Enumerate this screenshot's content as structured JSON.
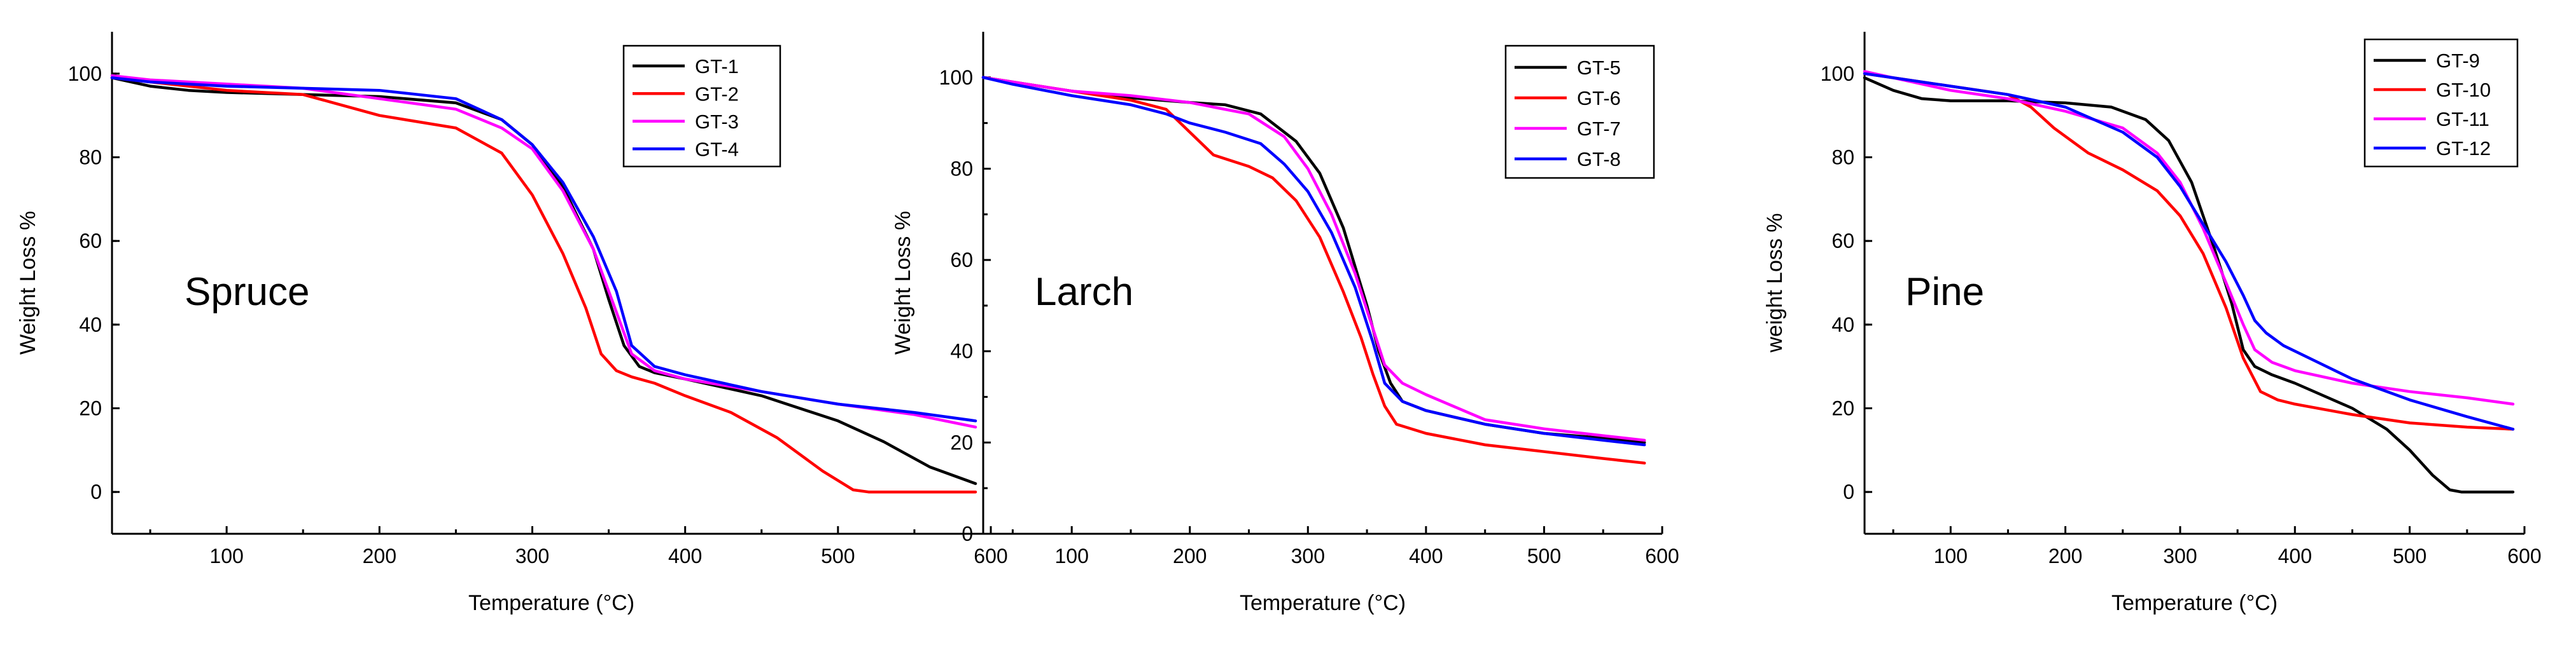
{
  "chart_data": [
    {
      "type": "line",
      "title": "",
      "annotation": "Spruce",
      "xlabel": "Temperature (°C)",
      "ylabel": "Weight Loss %",
      "xlim": [
        25,
        600
      ],
      "ylim": [
        -10,
        110
      ],
      "xticks": [
        100,
        200,
        300,
        400,
        500,
        600
      ],
      "yticks": [
        0,
        20,
        40,
        60,
        80,
        100
      ],
      "legend_position": "top-right",
      "series": [
        {
          "name": "GT-1",
          "color": "#000000",
          "x": [
            25,
            50,
            75,
            100,
            150,
            200,
            250,
            280,
            300,
            320,
            340,
            350,
            360,
            370,
            380,
            400,
            450,
            500,
            530,
            560,
            590
          ],
          "y": [
            99,
            97,
            96,
            95.5,
            95,
            94.5,
            93,
            89,
            83,
            73,
            58,
            46,
            35,
            30,
            28.5,
            27,
            23,
            17,
            12,
            6,
            2
          ]
        },
        {
          "name": "GT-2",
          "color": "#ff0000",
          "x": [
            25,
            50,
            100,
            150,
            170,
            200,
            250,
            280,
            300,
            320,
            335,
            345,
            355,
            365,
            380,
            400,
            430,
            460,
            490,
            510,
            520,
            590
          ],
          "y": [
            99,
            98,
            96,
            95,
            93,
            90,
            87,
            81,
            71,
            57,
            44,
            33,
            29,
            27.5,
            26,
            23,
            19,
            13,
            5,
            0.5,
            0,
            0
          ]
        },
        {
          "name": "GT-3",
          "color": "#ff00ff",
          "x": [
            25,
            50,
            100,
            150,
            200,
            250,
            280,
            300,
            320,
            340,
            355,
            365,
            380,
            400,
            450,
            500,
            550,
            590
          ],
          "y": [
            99.5,
            98.5,
            97.5,
            96.5,
            94,
            91.5,
            87,
            82,
            72,
            58,
            43,
            33,
            29,
            27,
            24,
            21,
            18.5,
            15.5
          ]
        },
        {
          "name": "GT-4",
          "color": "#0000ff",
          "x": [
            25,
            50,
            100,
            150,
            200,
            250,
            280,
            300,
            320,
            340,
            355,
            365,
            380,
            400,
            450,
            500,
            550,
            590
          ],
          "y": [
            99,
            98,
            97,
            96.5,
            96,
            94,
            89,
            83,
            74,
            61,
            48,
            35,
            30,
            28,
            24,
            21,
            19,
            17
          ]
        }
      ]
    },
    {
      "type": "line",
      "title": "",
      "annotation": "Larch",
      "xlabel": "Temperature (°C)",
      "ylabel": "Weight Loss %",
      "xlim": [
        25,
        600
      ],
      "ylim": [
        0,
        110
      ],
      "xticks": [
        100,
        200,
        300,
        400,
        500,
        600
      ],
      "yticks": [
        0,
        20,
        40,
        60,
        80,
        100
      ],
      "legend_position": "top-right",
      "series": [
        {
          "name": "GT-5",
          "color": "#000000",
          "x": [
            25,
            50,
            100,
            150,
            200,
            230,
            260,
            290,
            310,
            330,
            350,
            360,
            370,
            380,
            400,
            450,
            500,
            550,
            585
          ],
          "y": [
            100,
            99,
            97,
            95.5,
            94.5,
            94,
            92,
            86,
            79,
            67,
            50,
            40,
            33,
            29,
            27,
            24,
            22,
            21,
            20
          ]
        },
        {
          "name": "GT-6",
          "color": "#ff0000",
          "x": [
            25,
            50,
            100,
            150,
            180,
            200,
            220,
            250,
            270,
            290,
            310,
            330,
            345,
            355,
            365,
            375,
            400,
            450,
            500,
            550,
            585
          ],
          "y": [
            100,
            99,
            97,
            95,
            93,
            88,
            83,
            80.5,
            78,
            73,
            65,
            53,
            43,
            35,
            28,
            24,
            22,
            19.5,
            18,
            16.5,
            15.5
          ]
        },
        {
          "name": "GT-7",
          "color": "#ff00ff",
          "x": [
            25,
            50,
            100,
            150,
            200,
            250,
            280,
            300,
            320,
            340,
            355,
            365,
            380,
            400,
            450,
            500,
            550,
            585
          ],
          "y": [
            100,
            99,
            97,
            96,
            94.5,
            92,
            87,
            80,
            70,
            57,
            45,
            37,
            33,
            30.5,
            25,
            23,
            21.5,
            20.5
          ]
        },
        {
          "name": "GT-8",
          "color": "#0000ff",
          "x": [
            25,
            50,
            100,
            150,
            180,
            200,
            230,
            260,
            280,
            300,
            320,
            340,
            355,
            365,
            380,
            400,
            450,
            500,
            550,
            585
          ],
          "y": [
            100,
            98.5,
            96,
            94,
            92,
            90,
            88,
            85.5,
            81,
            75,
            66,
            54,
            42,
            33,
            29,
            27,
            24,
            22,
            20.5,
            19.5
          ]
        }
      ]
    },
    {
      "type": "line",
      "title": "",
      "annotation": "Pine",
      "xlabel": "Temperature (°C)",
      "ylabel": "weight Loss %",
      "xlim": [
        25,
        600
      ],
      "ylim": [
        -10,
        110
      ],
      "xticks": [
        100,
        200,
        300,
        400,
        500,
        600
      ],
      "yticks": [
        0,
        20,
        40,
        60,
        80,
        100
      ],
      "legend_position": "top-right",
      "series": [
        {
          "name": "GT-9",
          "color": "#000000",
          "x": [
            25,
            50,
            75,
            100,
            150,
            200,
            240,
            270,
            290,
            310,
            330,
            345,
            355,
            365,
            380,
            400,
            450,
            480,
            500,
            520,
            535,
            545,
            590
          ],
          "y": [
            99,
            96,
            94,
            93.5,
            93.5,
            93,
            92,
            89,
            84,
            74,
            58,
            45,
            34,
            30,
            28,
            26,
            20,
            15,
            10,
            4,
            0.5,
            0,
            0
          ]
        },
        {
          "name": "GT-10",
          "color": "#ff0000",
          "x": [
            25,
            50,
            100,
            150,
            170,
            190,
            220,
            250,
            280,
            300,
            320,
            340,
            355,
            370,
            385,
            400,
            450,
            500,
            550,
            590
          ],
          "y": [
            100,
            99,
            97,
            95,
            92,
            87,
            81,
            77,
            72,
            66,
            57,
            44,
            32,
            24,
            22,
            21,
            18.5,
            16.5,
            15.5,
            15
          ]
        },
        {
          "name": "GT-11",
          "color": "#ff00ff",
          "x": [
            25,
            50,
            100,
            150,
            200,
            250,
            280,
            300,
            320,
            340,
            355,
            365,
            380,
            400,
            450,
            500,
            550,
            590
          ],
          "y": [
            100.5,
            99,
            96,
            94,
            91,
            87,
            81,
            74,
            63,
            50,
            40,
            34,
            31,
            29,
            26,
            24,
            22.5,
            21
          ]
        },
        {
          "name": "GT-12",
          "color": "#0000ff",
          "x": [
            25,
            50,
            100,
            150,
            200,
            250,
            280,
            300,
            320,
            340,
            355,
            365,
            375,
            390,
            420,
            450,
            500,
            550,
            590
          ],
          "y": [
            100,
            99,
            97,
            95,
            92,
            86,
            80,
            73,
            64,
            55,
            47,
            41,
            38,
            35,
            31,
            27,
            22,
            18,
            15
          ]
        }
      ]
    }
  ]
}
